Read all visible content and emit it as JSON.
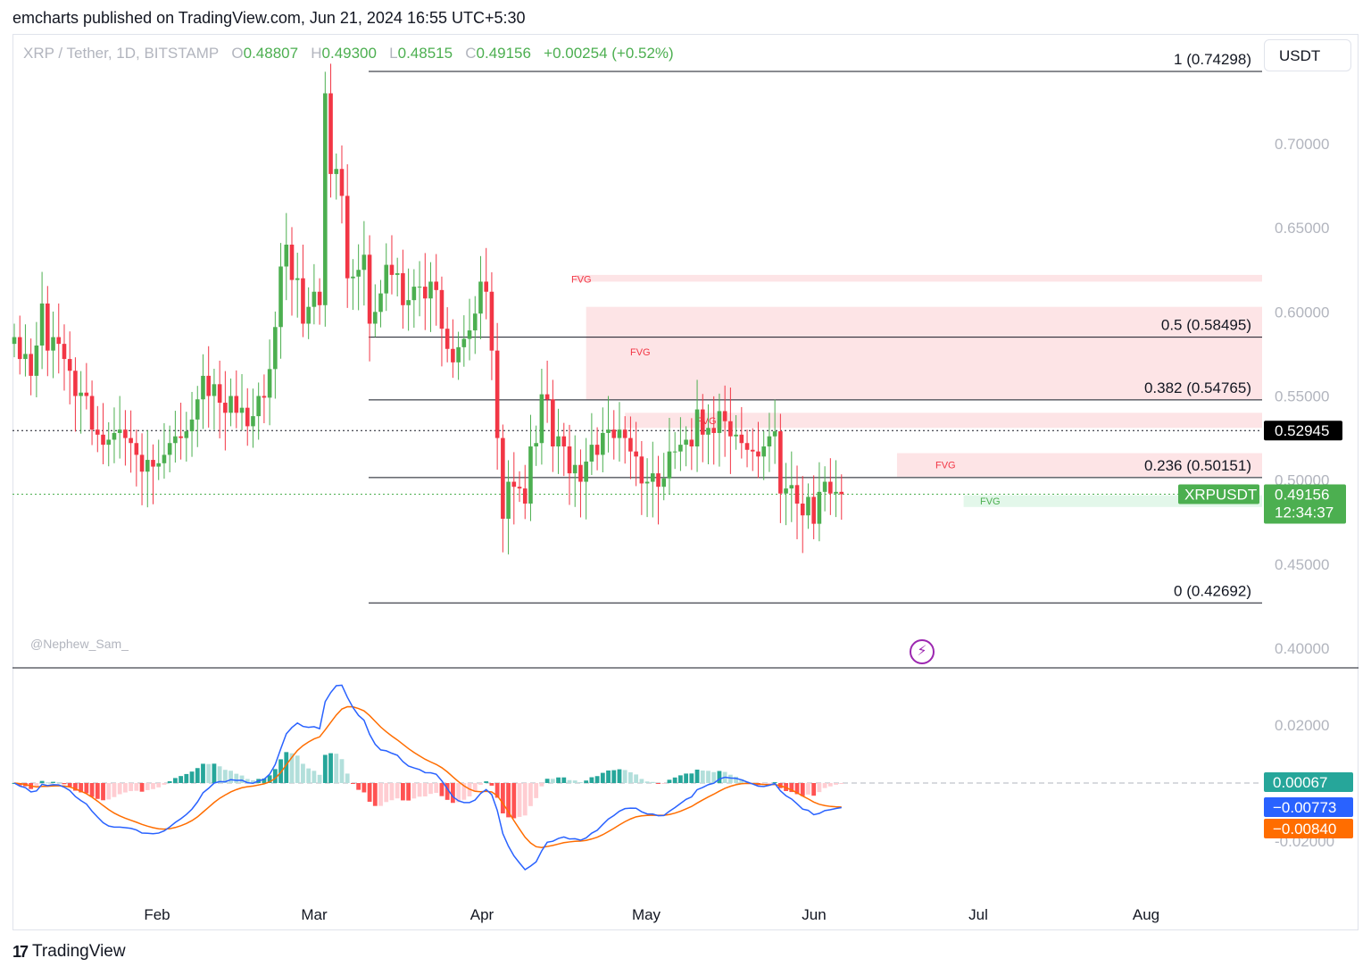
{
  "header": {
    "published": "emcharts published on TradingView.com, Jun 21, 2024 16:55 UTC+5:30"
  },
  "legend": {
    "symbol": "XRP / Tether, 1D, BITSTAMP",
    "o_label": "O",
    "o_value": "0.48807",
    "h_label": "H",
    "h_value": "0.49300",
    "l_label": "L",
    "l_value": "0.48515",
    "c_label": "C",
    "c_value": "0.49156",
    "change": "+0.00254 (+0.52%)"
  },
  "unit_label": "USDT",
  "watermark": "@Nephew_Sam_",
  "footer": {
    "brand": "TradingView",
    "logo_text": "17"
  },
  "colors": {
    "up": "#4caf50",
    "down": "#f23645",
    "fvg_red": "#fde4e6",
    "fvg_green": "#e3f7ea",
    "macd": "#2962ff",
    "signal": "#ff6d00",
    "hist_up_strong": "#26a69a",
    "hist_up_weak": "#b2dfdb",
    "hist_down_strong": "#ff5252",
    "hist_down_weak": "#ffcdd2",
    "grid_text": "#b2b5be",
    "axis_label_bg": "#4caf50"
  },
  "chart_data": {
    "type": "candlestick",
    "symbol": "XRPUSDT",
    "interval": "1D",
    "price_axis": {
      "ticks": [
        "0.70000",
        "0.65000",
        "0.60000",
        "0.55000",
        "0.50000",
        "0.45000",
        "0.40000"
      ],
      "ylim": [
        0.396,
        0.776
      ]
    },
    "time_axis": {
      "labels": [
        "Feb",
        "Mar",
        "Apr",
        "May",
        "Jun",
        "Jul",
        "Aug"
      ]
    },
    "fibonacci": [
      {
        "label": "1 (0.74298)",
        "value": 0.74298
      },
      {
        "label": "0.5 (0.58495)",
        "value": 0.58495
      },
      {
        "label": "0.382 (0.54765)",
        "value": 0.54765
      },
      {
        "label": "0.236 (0.50151)",
        "value": 0.50151
      },
      {
        "label": "0 (0.42692)",
        "value": 0.42692
      }
    ],
    "fvg_zones": [
      {
        "label": "FVG",
        "top": 0.622,
        "bottom": 0.618,
        "start": "2024-04-11",
        "color": "red"
      },
      {
        "label": "FVG",
        "top": 0.603,
        "bottom": 0.548,
        "start": "2024-04-13",
        "color": "red"
      },
      {
        "label": "FVG",
        "top": 0.54,
        "bottom": 0.531,
        "start": "2024-04-20",
        "color": "red"
      },
      {
        "label": "FVG",
        "top": 0.516,
        "bottom": 0.502,
        "start": "2024-06-08",
        "color": "red"
      },
      {
        "label": "FVG",
        "top": 0.491,
        "bottom": 0.484,
        "start": "2024-06-20",
        "color": "green"
      }
    ],
    "price_labels": [
      {
        "text": "0.52945",
        "value": 0.52945,
        "style": "black"
      },
      {
        "text": "0.49156",
        "value": 0.49156,
        "style": "green",
        "symbol": "XRPUSDT",
        "countdown": "12:34:37"
      }
    ],
    "closes": [
      0.585,
      0.572,
      0.575,
      0.562,
      0.58,
      0.605,
      0.577,
      0.585,
      0.581,
      0.572,
      0.565,
      0.55,
      0.552,
      0.55,
      0.53,
      0.527,
      0.521,
      0.524,
      0.528,
      0.53,
      0.525,
      0.522,
      0.515,
      0.505,
      0.512,
      0.508,
      0.51,
      0.515,
      0.522,
      0.526,
      0.525,
      0.529,
      0.536,
      0.548,
      0.562,
      0.55,
      0.557,
      0.546,
      0.54,
      0.55,
      0.54,
      0.543,
      0.532,
      0.538,
      0.55,
      0.549,
      0.566,
      0.591,
      0.627,
      0.64,
      0.619,
      0.62,
      0.593,
      0.603,
      0.612,
      0.604,
      0.73,
      0.682,
      0.685,
      0.669,
      0.62,
      0.621,
      0.625,
      0.634,
      0.593,
      0.6,
      0.611,
      0.628,
      0.622,
      0.623,
      0.604,
      0.607,
      0.615,
      0.615,
      0.608,
      0.618,
      0.613,
      0.59,
      0.578,
      0.57,
      0.579,
      0.584,
      0.589,
      0.599,
      0.618,
      0.612,
      0.577,
      0.525,
      0.477,
      0.499,
      0.496,
      0.495,
      0.486,
      0.52,
      0.522,
      0.551,
      0.548,
      0.52,
      0.526,
      0.52,
      0.504,
      0.509,
      0.499,
      0.511,
      0.521,
      0.515,
      0.528,
      0.53,
      0.525,
      0.53,
      0.525,
      0.517,
      0.514,
      0.498,
      0.499,
      0.504,
      0.496,
      0.501,
      0.517,
      0.517,
      0.521,
      0.524,
      0.52,
      0.542,
      0.527,
      0.531,
      0.528,
      0.541,
      0.535,
      0.526,
      0.527,
      0.522,
      0.518,
      0.517,
      0.514,
      0.52,
      0.526,
      0.529,
      0.492,
      0.495,
      0.497,
      0.486,
      0.479,
      0.49,
      0.474,
      0.493,
      0.499,
      0.492,
      0.493,
      0.4916
    ],
    "macd": {
      "macd": -0.00773,
      "signal": -0.0084,
      "histogram": 0.00067,
      "ticks": [
        "0.02000",
        "-0.02000"
      ],
      "ylim": [
        -0.03,
        0.03
      ]
    }
  }
}
